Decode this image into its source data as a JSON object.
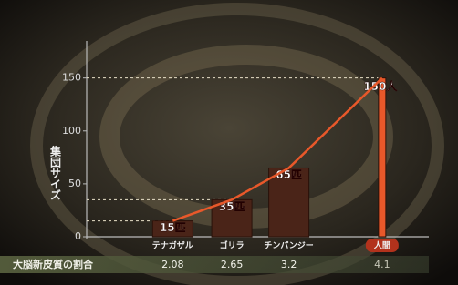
{
  "chart_data": {
    "type": "bar",
    "y_label": "集団サイズ",
    "x_label": "大脳新皮質の割合",
    "categories": [
      "テナガザル",
      "ゴリラ",
      "チンパンジー",
      "人間"
    ],
    "x": [
      2.08,
      2.65,
      3.2,
      4.1
    ],
    "values": [
      15,
      35,
      65,
      150
    ],
    "value_labels": [
      "15匹",
      "35匹",
      "65匹",
      "150人"
    ],
    "color": "#4a2418",
    "curve_color": "#e8582a",
    "xlim": [
      1.25,
      4.55
    ],
    "ylim": [
      0,
      185
    ],
    "yticks": [
      0,
      50,
      100,
      150
    ],
    "grid": false
  }
}
